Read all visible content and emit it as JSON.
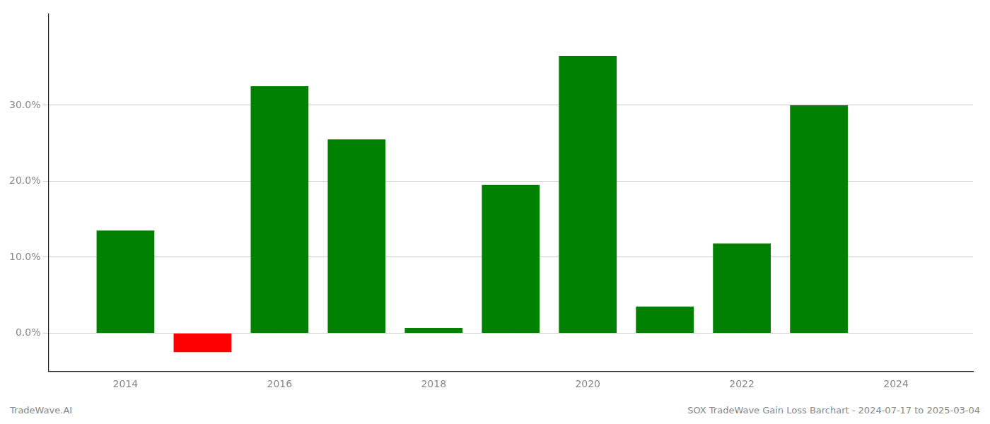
{
  "chart_data": {
    "type": "bar",
    "x": [
      2014,
      2015,
      2016,
      2017,
      2018,
      2019,
      2020,
      2021,
      2022,
      2023
    ],
    "values": [
      13.5,
      -2.5,
      32.5,
      25.5,
      0.7,
      19.5,
      36.5,
      3.5,
      11.8,
      30.0
    ],
    "colors": [
      "#008000",
      "#ff0000",
      "#008000",
      "#008000",
      "#008000",
      "#008000",
      "#008000",
      "#008000",
      "#008000",
      "#008000"
    ],
    "xlim": [
      2013.0,
      2025.0
    ],
    "xticks": [
      2014,
      2016,
      2018,
      2020,
      2022,
      2024
    ],
    "ylim": [
      -5,
      42
    ],
    "yticks": [
      {
        "value": 0.0,
        "label": "0.0%"
      },
      {
        "value": 10.0,
        "label": "10.0%"
      },
      {
        "value": 20.0,
        "label": "20.0%"
      },
      {
        "value": 30.0,
        "label": "30.0%"
      }
    ],
    "grid": "y",
    "annotations": [
      "TradeWave.AI",
      "SOX TradeWave Gain Loss Barchart - 2024-07-17 to 2025-03-04"
    ]
  }
}
